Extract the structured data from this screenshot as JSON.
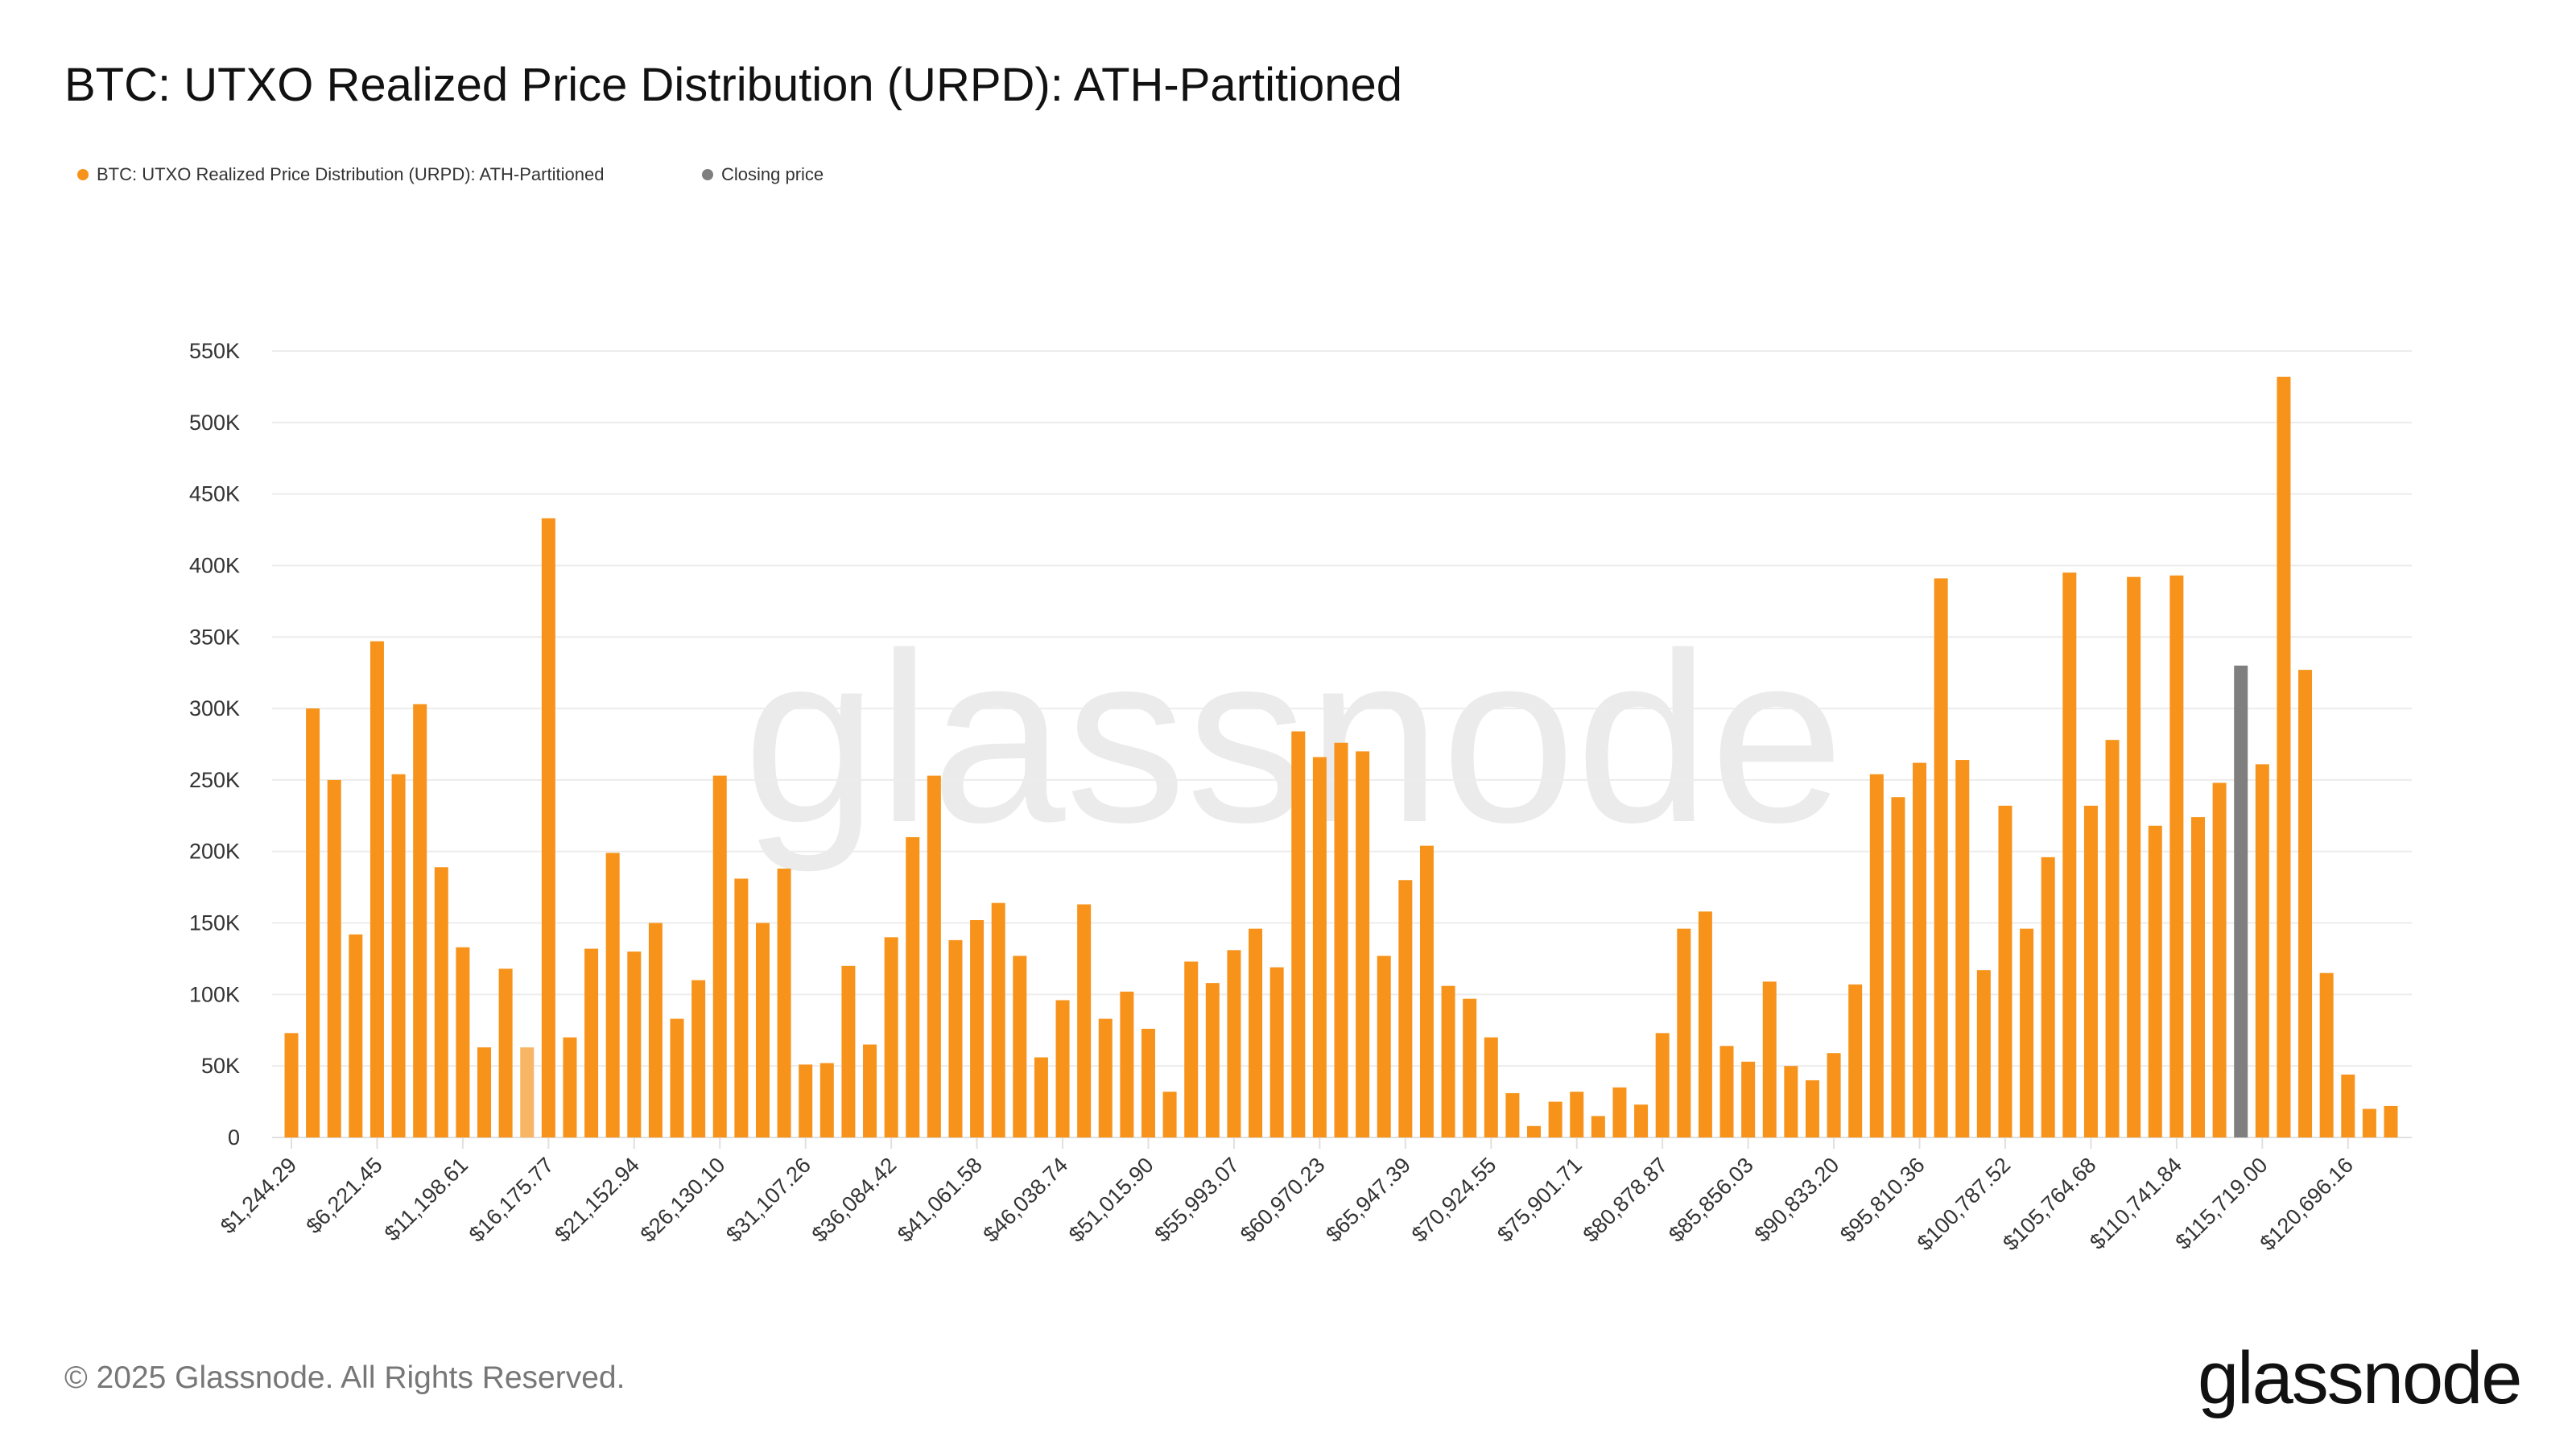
{
  "title": "BTC: UTXO Realized Price Distribution (URPD): ATH-Partitioned",
  "legend": [
    {
      "label": "BTC: UTXO Realized Price Distribution (URPD): ATH-Partitioned",
      "color": "#f7931a"
    },
    {
      "label": "Closing price",
      "color": "#7f7f7f"
    }
  ],
  "watermark": "glassnode",
  "footer": "© 2025 Glassnode. All Rights Reserved.",
  "logo": "glassnode",
  "chart_data": {
    "type": "bar",
    "title": "BTC: UTXO Realized Price Distribution (URPD): ATH-Partitioned",
    "xlabel": "",
    "ylabel": "",
    "ylim": [
      0,
      550000
    ],
    "grid": true,
    "legend_placement": "top-left",
    "y_ticks": [
      "0",
      "50K",
      "100K",
      "150K",
      "200K",
      "250K",
      "300K",
      "350K",
      "400K",
      "450K",
      "500K",
      "550K"
    ],
    "x_tick_labels": [
      "$1,244.29",
      "$6,221.45",
      "$11,198.61",
      "$16,175.77",
      "$21,152.94",
      "$26,130.10",
      "$31,107.26",
      "$36,084.42",
      "$41,061.58",
      "$46,038.74",
      "$51,015.90",
      "$55,993.07",
      "$60,970.23",
      "$65,947.39",
      "$70,924.55",
      "$75,901.71",
      "$80,878.87",
      "$85,856.03",
      "$90,833.20",
      "$95,810.36",
      "$100,787.52",
      "$105,764.68",
      "$110,741.84",
      "$115,719.00",
      "$120,696.16"
    ],
    "x_tick_every": 4,
    "colors": {
      "bar": "#f7931a",
      "closing_price": "#7f7f7f",
      "highlighted": "#f8b565"
    },
    "closing_price_bar_index": 91,
    "highlighted_bar_index": 11,
    "values": [
      73000,
      300000,
      250000,
      142000,
      347000,
      254000,
      303000,
      189000,
      133000,
      63000,
      118000,
      63000,
      433000,
      70000,
      132000,
      199000,
      130000,
      150000,
      83000,
      110000,
      253000,
      181000,
      150000,
      188000,
      51000,
      52000,
      120000,
      65000,
      140000,
      210000,
      253000,
      138000,
      152000,
      164000,
      127000,
      56000,
      96000,
      163000,
      83000,
      102000,
      76000,
      32000,
      123000,
      108000,
      131000,
      146000,
      119000,
      284000,
      266000,
      276000,
      270000,
      127000,
      180000,
      204000,
      106000,
      97000,
      70000,
      31000,
      8000,
      25000,
      32000,
      15000,
      35000,
      23000,
      73000,
      146000,
      158000,
      64000,
      53000,
      109000,
      50000,
      40000,
      59000,
      107000,
      254000,
      238000,
      262000,
      391000,
      264000,
      117000,
      232000,
      146000,
      196000,
      395000,
      232000,
      278000,
      392000,
      218000,
      393000,
      224000,
      248000,
      330000,
      261000,
      532000,
      327000,
      115000,
      44000,
      20000,
      22000
    ]
  }
}
